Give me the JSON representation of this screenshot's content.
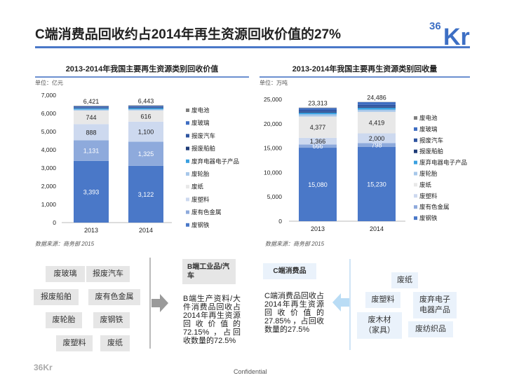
{
  "header": {
    "title": "C端消费品回收约占2014年再生资源回收价值的27%",
    "logo_text": "36Kr"
  },
  "colors": {
    "accent": "#4a78c8",
    "废钢铁": "#4a78c8",
    "废有色金属": "#8eaadc",
    "废塑料": "#cdd9ef",
    "废纸": "#e8e8e8",
    "废轮胎": "#a8c8ea",
    "废弃电器电子产品": "#3aa0e0",
    "报废船舶": "#1f3c78",
    "报废汽车": "#2f55a0",
    "废玻璃": "#3f6ec2",
    "废电池": "#808080"
  },
  "chart_data": [
    {
      "type": "bar",
      "stacked": true,
      "title": "2013-2014年我国主要再生资源类别回收价值",
      "unit": "单位：亿元",
      "source": "数据来源：商务部 2015",
      "categories": [
        "2013",
        "2014"
      ],
      "ylim": [
        0,
        7000
      ],
      "yticks": [
        "0",
        "1,000",
        "2,000",
        "3,000",
        "4,000",
        "5,000",
        "6,000",
        "7,000"
      ],
      "legend": "right",
      "totals": [
        "6,421",
        "6,443"
      ],
      "series": [
        {
          "name": "废钢铁",
          "values": [
            3393,
            3122
          ],
          "labels": [
            "3,393",
            "3,122"
          ]
        },
        {
          "name": "废有色金属",
          "values": [
            1131,
            1325
          ],
          "labels": [
            "1,131",
            "1,325"
          ]
        },
        {
          "name": "废塑料",
          "values": [
            888,
            1100
          ],
          "labels": [
            "888",
            "1,100"
          ]
        },
        {
          "name": "废纸",
          "values": [
            744,
            616
          ],
          "labels": [
            "744",
            "616"
          ]
        },
        {
          "name": "废轮胎",
          "values": [
            60,
            60
          ]
        },
        {
          "name": "废弃电器电子产品",
          "values": [
            60,
            70
          ]
        },
        {
          "name": "报废船舶",
          "values": [
            20,
            20
          ]
        },
        {
          "name": "报废汽车",
          "values": [
            40,
            60
          ]
        },
        {
          "name": "废玻璃",
          "values": [
            60,
            45
          ]
        },
        {
          "name": "废电池",
          "values": [
            25,
            25
          ]
        }
      ]
    },
    {
      "type": "bar",
      "stacked": true,
      "title": "2013-2014年我国主要再生资源类别回收量",
      "unit": "单位：万吨",
      "source": "数据来源：商务部 2015",
      "categories": [
        "2013",
        "2014"
      ],
      "ylim": [
        0,
        25000
      ],
      "yticks": [
        "0",
        "5,000",
        "10,000",
        "15,000",
        "20,000",
        "25,000"
      ],
      "legend": "right",
      "totals": [
        "23,313",
        "24,486"
      ],
      "series": [
        {
          "name": "废钢铁",
          "values": [
            15080,
            15230
          ],
          "labels": [
            "15,080",
            "15,230"
          ]
        },
        {
          "name": "废有色金属",
          "values": [
            666,
            798
          ],
          "labels": [
            "666",
            "798"
          ]
        },
        {
          "name": "废塑料",
          "values": [
            1366,
            2000
          ],
          "labels": [
            "1,366",
            "2,000"
          ]
        },
        {
          "name": "废纸",
          "values": [
            4377,
            4419
          ],
          "labels": [
            "4,377",
            "4,419"
          ]
        },
        {
          "name": "废轮胎",
          "values": [
            450,
            450
          ]
        },
        {
          "name": "废弃电器电子产品",
          "values": [
            350,
            400
          ]
        },
        {
          "name": "报废船舶",
          "values": [
            150,
            150
          ]
        },
        {
          "name": "报废汽车",
          "values": [
            400,
            450
          ]
        },
        {
          "name": "废玻璃",
          "values": [
            400,
            550
          ]
        },
        {
          "name": "废电池",
          "values": [
            74,
            39
          ]
        }
      ]
    }
  ],
  "b_side": {
    "tags": [
      "废玻璃",
      "报废汽车",
      "报废船舶",
      "废有色金属",
      "废轮胎",
      "废钢铁",
      "废塑料",
      "废纸"
    ],
    "heading": "B端工业品/汽车",
    "desc": "B端生产资料/大件消费品回收占2014年再生资源回收价值的72.15% ，占回收数量的72.5%"
  },
  "c_side": {
    "heading": "C端消费品",
    "desc": "C端消费品回收占2014年再生资源回收价值的27.85% ，占回收数量的27.5%",
    "tags": [
      "废纸",
      "废塑料",
      "废弃电子电器产品",
      "废木材（家具）",
      "废纺织品"
    ]
  },
  "footer": {
    "confidential": "Confidential",
    "logo_text": "36Kr"
  }
}
